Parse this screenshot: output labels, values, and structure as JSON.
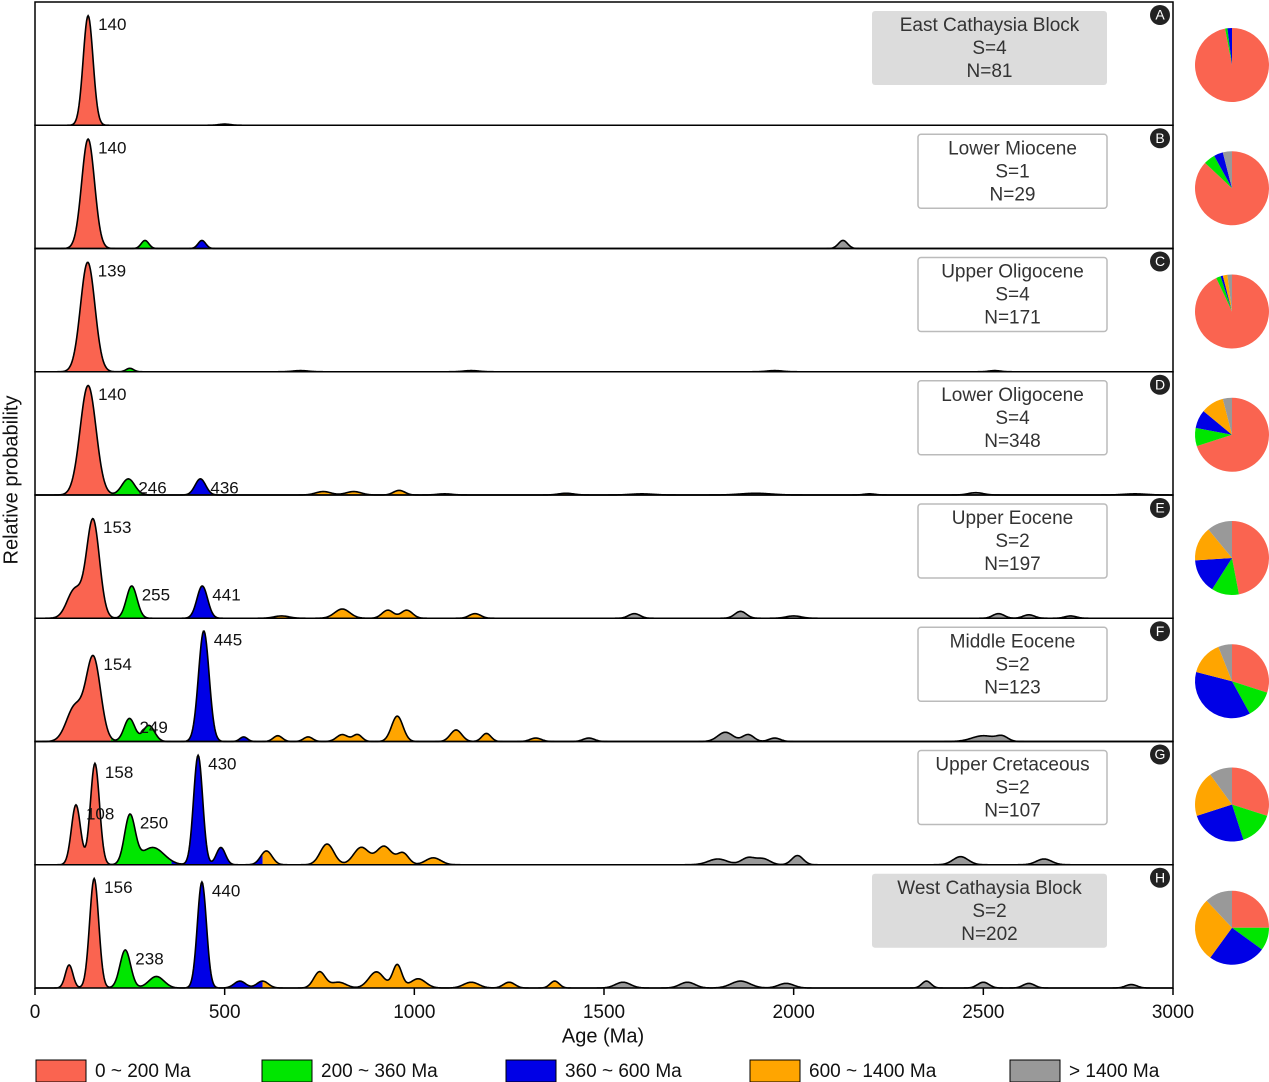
{
  "chart_data": {
    "type": "density-panels",
    "xlabel": "Age (Ma)",
    "ylabel": "Relative probability",
    "xlim": [
      0,
      3000
    ],
    "xticks": [
      0,
      500,
      1000,
      1500,
      2000,
      2500,
      3000
    ],
    "legend": [
      {
        "name": "0 ~ 200 Ma",
        "color": "#fa6450",
        "from": 0,
        "to": 200
      },
      {
        "name": "200 ~ 360 Ma",
        "color": "#00e600",
        "from": 200,
        "to": 360
      },
      {
        "name": "360 ~ 600 Ma",
        "color": "#0000e6",
        "from": 360,
        "to": 600
      },
      {
        "name": "600 ~ 1400 Ma",
        "color": "#ffa500",
        "from": 600,
        "to": 1400
      },
      {
        "name": "> 1400 Ma",
        "color": "#999999",
        "from": 1400,
        "to": null
      }
    ],
    "panels": [
      {
        "letter": "A",
        "title": "East Cathaysia Block",
        "s": "S=4",
        "n": "N=81",
        "shaded": true,
        "peaks": [
          140
        ],
        "pie": [
          97,
          1,
          2,
          0,
          0
        ],
        "components": [
          [
            140,
            95,
            13
          ],
          [
            500,
            1,
            15
          ]
        ]
      },
      {
        "letter": "B",
        "title": "Lower Miocene",
        "s": "S=1",
        "n": "N=29",
        "shaded": false,
        "peaks": [
          140
        ],
        "pie": [
          87,
          5,
          4,
          0,
          4
        ],
        "components": [
          [
            140,
            95,
            17
          ],
          [
            290,
            7,
            10
          ],
          [
            440,
            7,
            10
          ],
          [
            2130,
            7,
            12
          ]
        ]
      },
      {
        "letter": "C",
        "title": "Upper Oligocene",
        "s": "S=4",
        "n": "N=171",
        "shaded": false,
        "peaks": [
          139
        ],
        "pie": [
          93,
          2,
          1,
          2,
          2
        ],
        "components": [
          [
            139,
            95,
            19
          ],
          [
            250,
            3,
            10
          ],
          [
            700,
            1,
            20
          ],
          [
            1150,
            1,
            20
          ],
          [
            1950,
            1,
            20
          ],
          [
            2530,
            1,
            15
          ]
        ]
      },
      {
        "letter": "D",
        "title": "Lower Oligocene",
        "s": "S=4",
        "n": "N=348",
        "shaded": false,
        "peaks": [
          140,
          246,
          436
        ],
        "pie": [
          70,
          8,
          8,
          10,
          4
        ],
        "components": [
          [
            140,
            95,
            21
          ],
          [
            246,
            14,
            17
          ],
          [
            436,
            14,
            14
          ],
          [
            760,
            3,
            20
          ],
          [
            840,
            3,
            20
          ],
          [
            960,
            4,
            15
          ],
          [
            1080,
            1,
            20
          ],
          [
            1400,
            1.5,
            20
          ],
          [
            1600,
            1,
            30
          ],
          [
            1900,
            1.5,
            40
          ],
          [
            2200,
            1,
            15
          ],
          [
            2480,
            2,
            20
          ],
          [
            2900,
            1,
            30
          ]
        ]
      },
      {
        "letter": "E",
        "title": "Upper Eocene",
        "s": "S=2",
        "n": "N=197",
        "shaded": false,
        "peaks": [
          153,
          255,
          441
        ],
        "pie": [
          47,
          12,
          15,
          15,
          11
        ],
        "components": [
          [
            105,
            25,
            20
          ],
          [
            153,
            85,
            17
          ],
          [
            255,
            28,
            14
          ],
          [
            441,
            28,
            14
          ],
          [
            650,
            2,
            20
          ],
          [
            810,
            8,
            20
          ],
          [
            930,
            7,
            15
          ],
          [
            980,
            7,
            15
          ],
          [
            1160,
            4,
            15
          ],
          [
            1580,
            4,
            15
          ],
          [
            1860,
            6,
            15
          ],
          [
            2000,
            2,
            20
          ],
          [
            2540,
            4,
            15
          ],
          [
            2620,
            3,
            15
          ],
          [
            2730,
            2,
            15
          ]
        ]
      },
      {
        "letter": "F",
        "title": "Middle Eocene",
        "s": "S=2",
        "n": "N=123",
        "shaded": false,
        "peaks": [
          154,
          249,
          445
        ],
        "pie": [
          30,
          12,
          37,
          15,
          6
        ],
        "components": [
          [
            105,
            30,
            22
          ],
          [
            154,
            72,
            19
          ],
          [
            249,
            20,
            14
          ],
          [
            300,
            14,
            15
          ],
          [
            445,
            96,
            14
          ],
          [
            550,
            4,
            10
          ],
          [
            640,
            5,
            12
          ],
          [
            720,
            4,
            12
          ],
          [
            810,
            6,
            15
          ],
          [
            850,
            6,
            12
          ],
          [
            955,
            22,
            15
          ],
          [
            1110,
            10,
            15
          ],
          [
            1190,
            7,
            12
          ],
          [
            1320,
            3,
            15
          ],
          [
            1460,
            3,
            15
          ],
          [
            1820,
            8,
            20
          ],
          [
            1880,
            6,
            15
          ],
          [
            1950,
            3,
            15
          ],
          [
            2500,
            5,
            30
          ],
          [
            2550,
            4,
            15
          ]
        ]
      },
      {
        "letter": "G",
        "title": "Upper Cretaceous",
        "s": "S=2",
        "n": "N=107",
        "shaded": false,
        "peaks": [
          108,
          158,
          250,
          430
        ],
        "pie": [
          30,
          15,
          25,
          20,
          10
        ],
        "components": [
          [
            108,
            52,
            12
          ],
          [
            158,
            88,
            12
          ],
          [
            250,
            42,
            14
          ],
          [
            310,
            15,
            30
          ],
          [
            430,
            95,
            12
          ],
          [
            490,
            15,
            12
          ],
          [
            610,
            12,
            15
          ],
          [
            770,
            18,
            18
          ],
          [
            860,
            15,
            20
          ],
          [
            920,
            16,
            20
          ],
          [
            970,
            10,
            15
          ],
          [
            1050,
            6,
            20
          ],
          [
            1800,
            5,
            25
          ],
          [
            1880,
            6,
            18
          ],
          [
            1920,
            5,
            18
          ],
          [
            2010,
            8,
            15
          ],
          [
            2440,
            7,
            20
          ],
          [
            2660,
            5,
            20
          ]
        ]
      },
      {
        "letter": "H",
        "title": "West Cathaysia Block",
        "s": "S=2",
        "n": "N=202",
        "shaded": true,
        "peaks": [
          156,
          238,
          440
        ],
        "pie": [
          25,
          10,
          25,
          28,
          12
        ],
        "components": [
          [
            90,
            20,
            10
          ],
          [
            156,
            95,
            12
          ],
          [
            238,
            33,
            14
          ],
          [
            320,
            10,
            20
          ],
          [
            440,
            92,
            12
          ],
          [
            540,
            6,
            15
          ],
          [
            600,
            6,
            15
          ],
          [
            750,
            14,
            15
          ],
          [
            800,
            5,
            20
          ],
          [
            900,
            14,
            20
          ],
          [
            955,
            20,
            12
          ],
          [
            1010,
            8,
            20
          ],
          [
            1150,
            5,
            20
          ],
          [
            1250,
            5,
            15
          ],
          [
            1370,
            6,
            12
          ],
          [
            1550,
            5,
            20
          ],
          [
            1720,
            5,
            20
          ],
          [
            1860,
            6,
            25
          ],
          [
            1980,
            4,
            20
          ],
          [
            2350,
            6,
            12
          ],
          [
            2500,
            5,
            15
          ],
          [
            2620,
            4,
            15
          ],
          [
            2890,
            3,
            15
          ]
        ]
      }
    ]
  }
}
